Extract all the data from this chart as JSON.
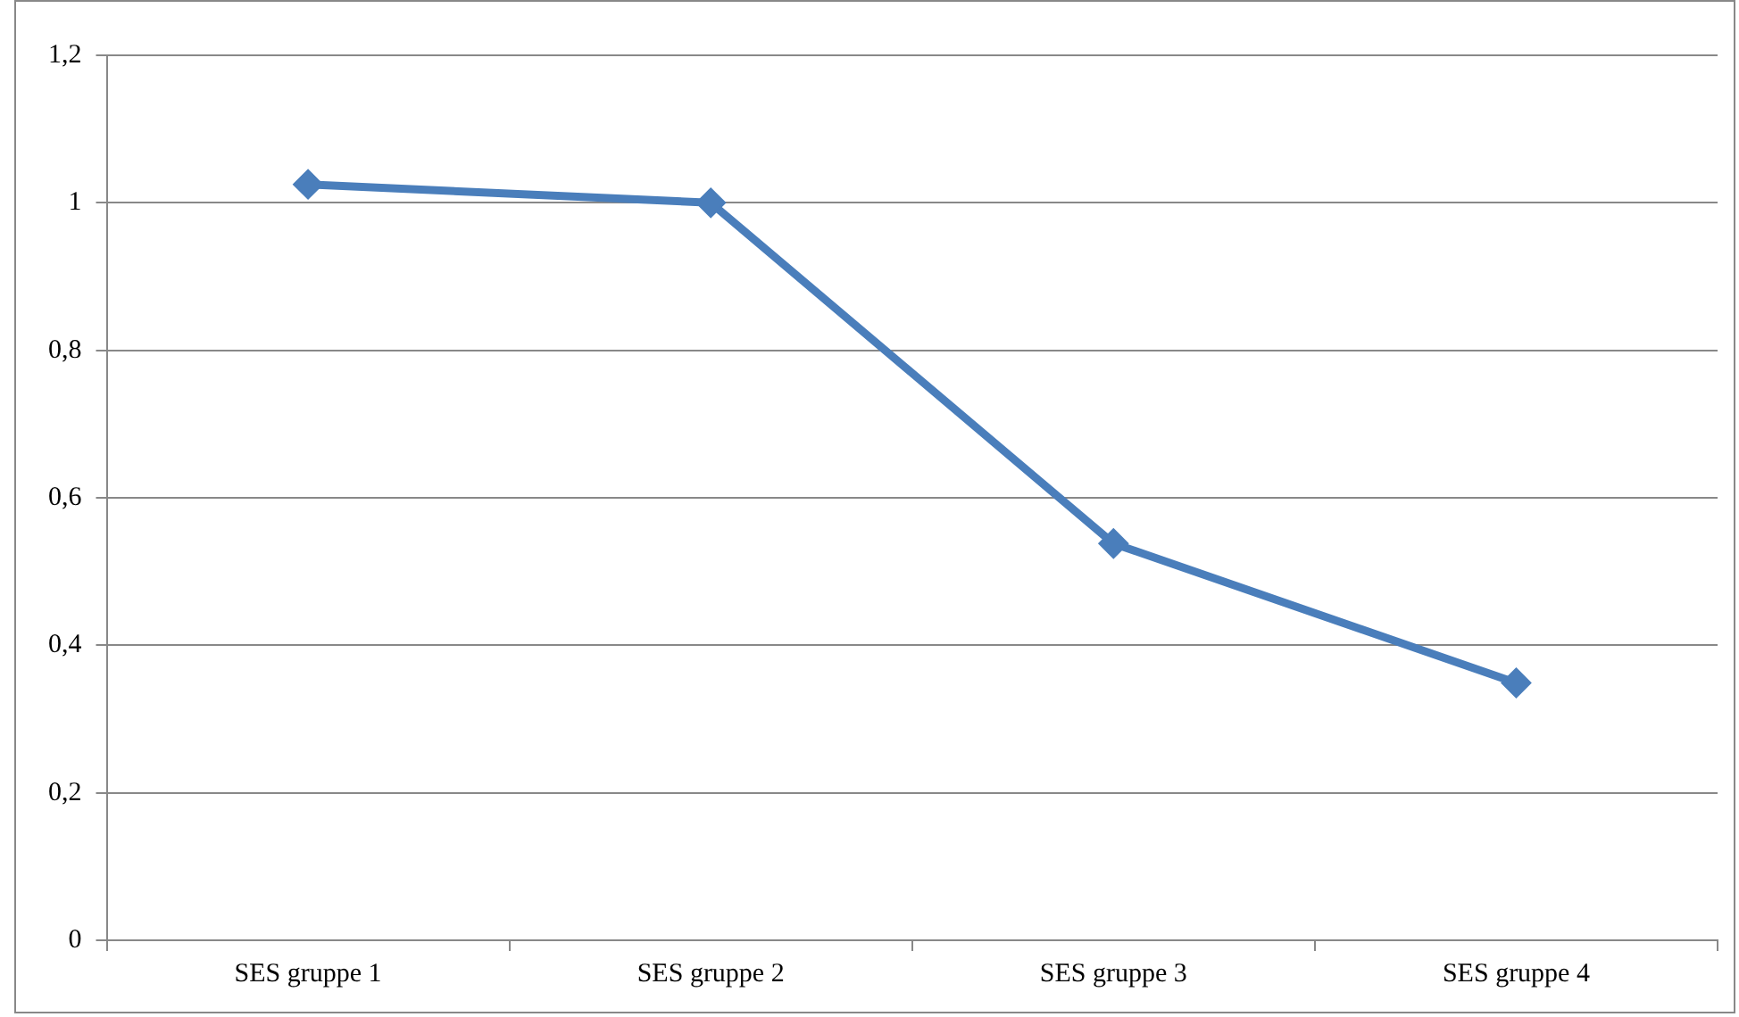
{
  "chart_data": {
    "type": "line",
    "categories": [
      "SES gruppe 1",
      "SES gruppe 2",
      "SES gruppe 3",
      "SES gruppe 4"
    ],
    "series": [
      {
        "color": "#4a7ebb",
        "values": [
          1.025,
          1.0,
          0.538,
          0.349
        ]
      }
    ],
    "ylim": [
      0,
      1.2
    ],
    "yticks": [
      0,
      {
        "value": 0.2,
        "label": "0,2"
      },
      {
        "value": 0.4,
        "label": "0,4"
      },
      {
        "value": 0.6,
        "label": "0,6"
      },
      {
        "value": 0.8,
        "label": "0,8"
      },
      1,
      {
        "value": 1.2,
        "label": "1,2"
      }
    ],
    "grid": "y",
    "legend": false,
    "marker": "diamond",
    "line_style": "solid"
  }
}
